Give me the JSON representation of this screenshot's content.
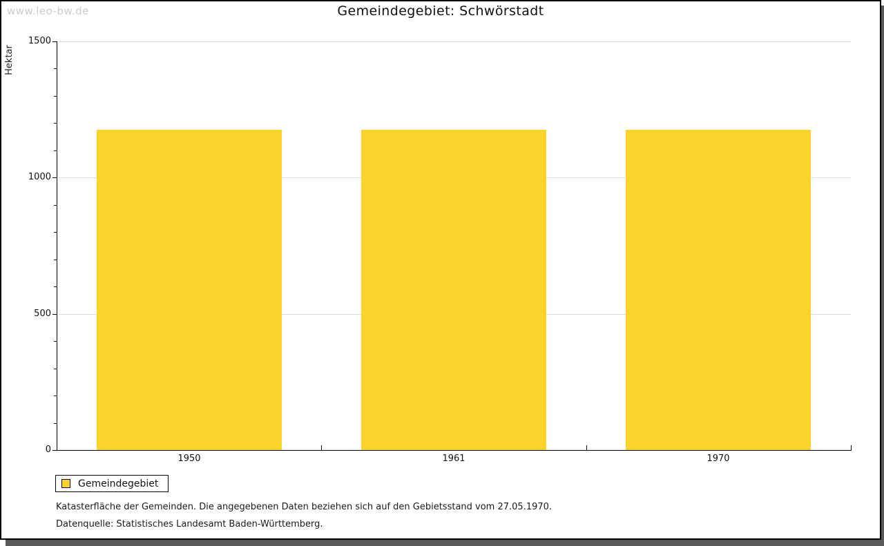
{
  "watermark": "www.leo-bw.de",
  "header": {
    "title": "Gemeindegebiet: Schwörstadt"
  },
  "chart_data": {
    "type": "bar",
    "title": "Gemeindegebiet: Schwörstadt",
    "categories": [
      "1950",
      "1961",
      "1970"
    ],
    "series": [
      {
        "name": "Gemeindegebiet",
        "values": [
          1176,
          1176,
          1176
        ],
        "color": "#fcd32b"
      }
    ],
    "xlabel": "",
    "ylabel": "Hektar",
    "ylim": [
      0,
      1500
    ],
    "ytick_major_step": 500,
    "ytick_minor_step": 100,
    "ytick_labels": [
      "0",
      "500",
      "1000",
      "1500"
    ],
    "grid": "horizontal-major",
    "legend_position": "bottom-left",
    "bar_width_fraction": 0.7
  },
  "legend": {
    "items": [
      {
        "label": "Gemeindegebiet",
        "color": "#fcd32b"
      }
    ]
  },
  "footnotes": [
    "Katasterfläche der Gemeinden. Die angegebenen Daten beziehen sich auf den Gebietsstand vom 27.05.1970.",
    "Datenquelle: Statistisches Landesamt Baden-Württemberg."
  ],
  "colors": {
    "bar": "#fcd32b",
    "gridline": "#dddddd",
    "axis": "#000000",
    "watermark": "#cccccc",
    "window_border": "#000000",
    "shadow": "#595959",
    "background": "#ffffff"
  }
}
